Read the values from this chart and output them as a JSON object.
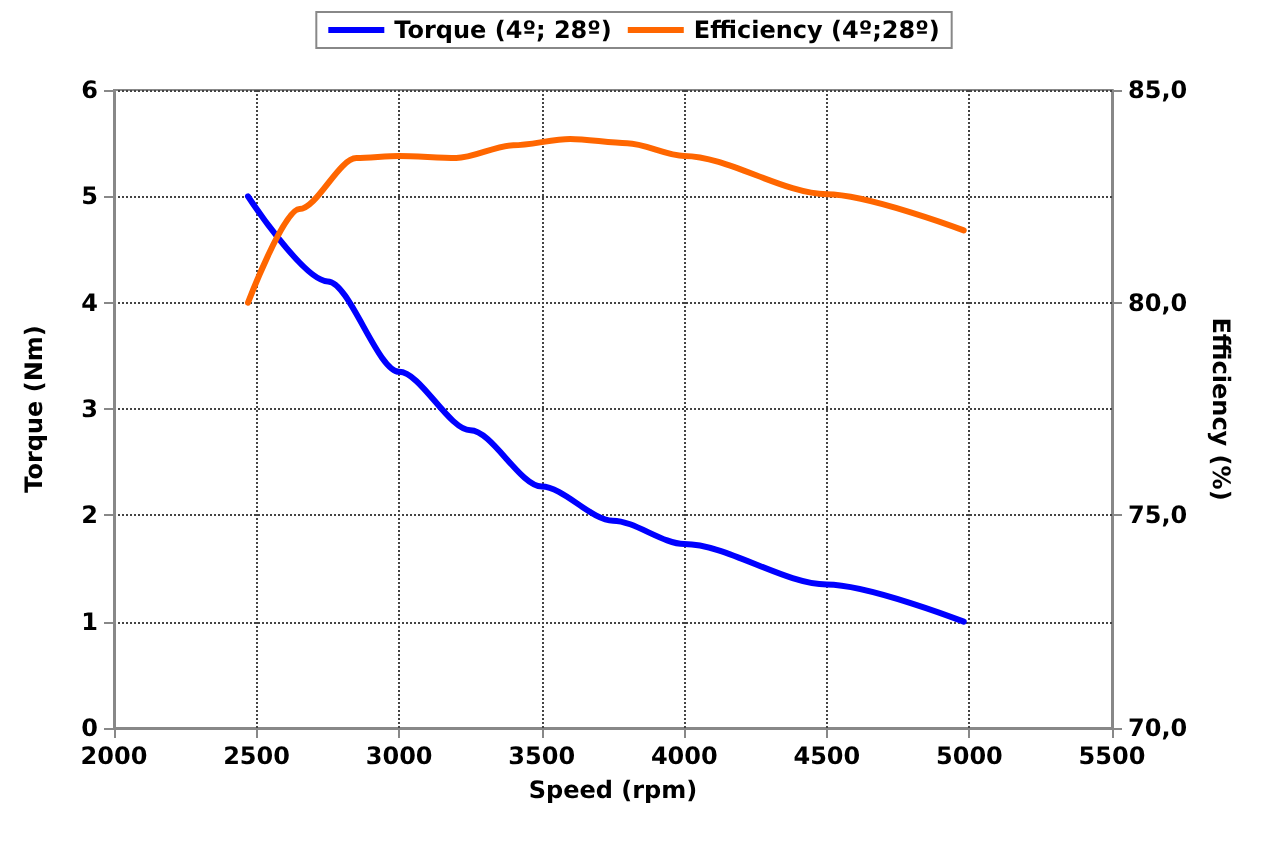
{
  "chart_data": {
    "type": "line",
    "xlabel": "Speed (rpm)",
    "ylabel": "Torque (Nm)",
    "y2label": "Efficiency (%)",
    "xlim": [
      2000,
      5500
    ],
    "xticks": [
      2000,
      2500,
      3000,
      3500,
      4000,
      4500,
      5000,
      5500
    ],
    "ylim": [
      0,
      6
    ],
    "yticks": [
      0,
      1,
      2,
      3,
      4,
      5,
      6
    ],
    "y2lim": [
      70,
      85
    ],
    "y2ticks": [
      {
        "value": 70,
        "label": "70,0"
      },
      {
        "value": 75,
        "label": "75,0"
      },
      {
        "value": 80,
        "label": "80,0"
      },
      {
        "value": 85,
        "label": "85,0"
      }
    ],
    "grid": true,
    "legend": "top",
    "marker": "none",
    "line_style": "solid",
    "series": [
      {
        "name": "Torque (4º; 28º)",
        "color": "#0000ff",
        "x": [
          2470,
          2750,
          3000,
          3250,
          3500,
          3750,
          4000,
          4500,
          4980
        ],
        "values": [
          5.0,
          4.2,
          3.35,
          2.8,
          2.27,
          1.95,
          1.73,
          1.35,
          1.0
        ]
      },
      {
        "name": "Efficiency (4º;28º)",
        "color": "#ff6600",
        "axis": "y2",
        "x": [
          2470,
          2650,
          2850,
          3000,
          3200,
          3400,
          3600,
          3800,
          4000,
          4500,
          4980
        ],
        "values": [
          80.0,
          82.2,
          83.4,
          83.45,
          83.4,
          83.7,
          83.85,
          83.75,
          83.45,
          82.55,
          81.7
        ]
      }
    ]
  }
}
